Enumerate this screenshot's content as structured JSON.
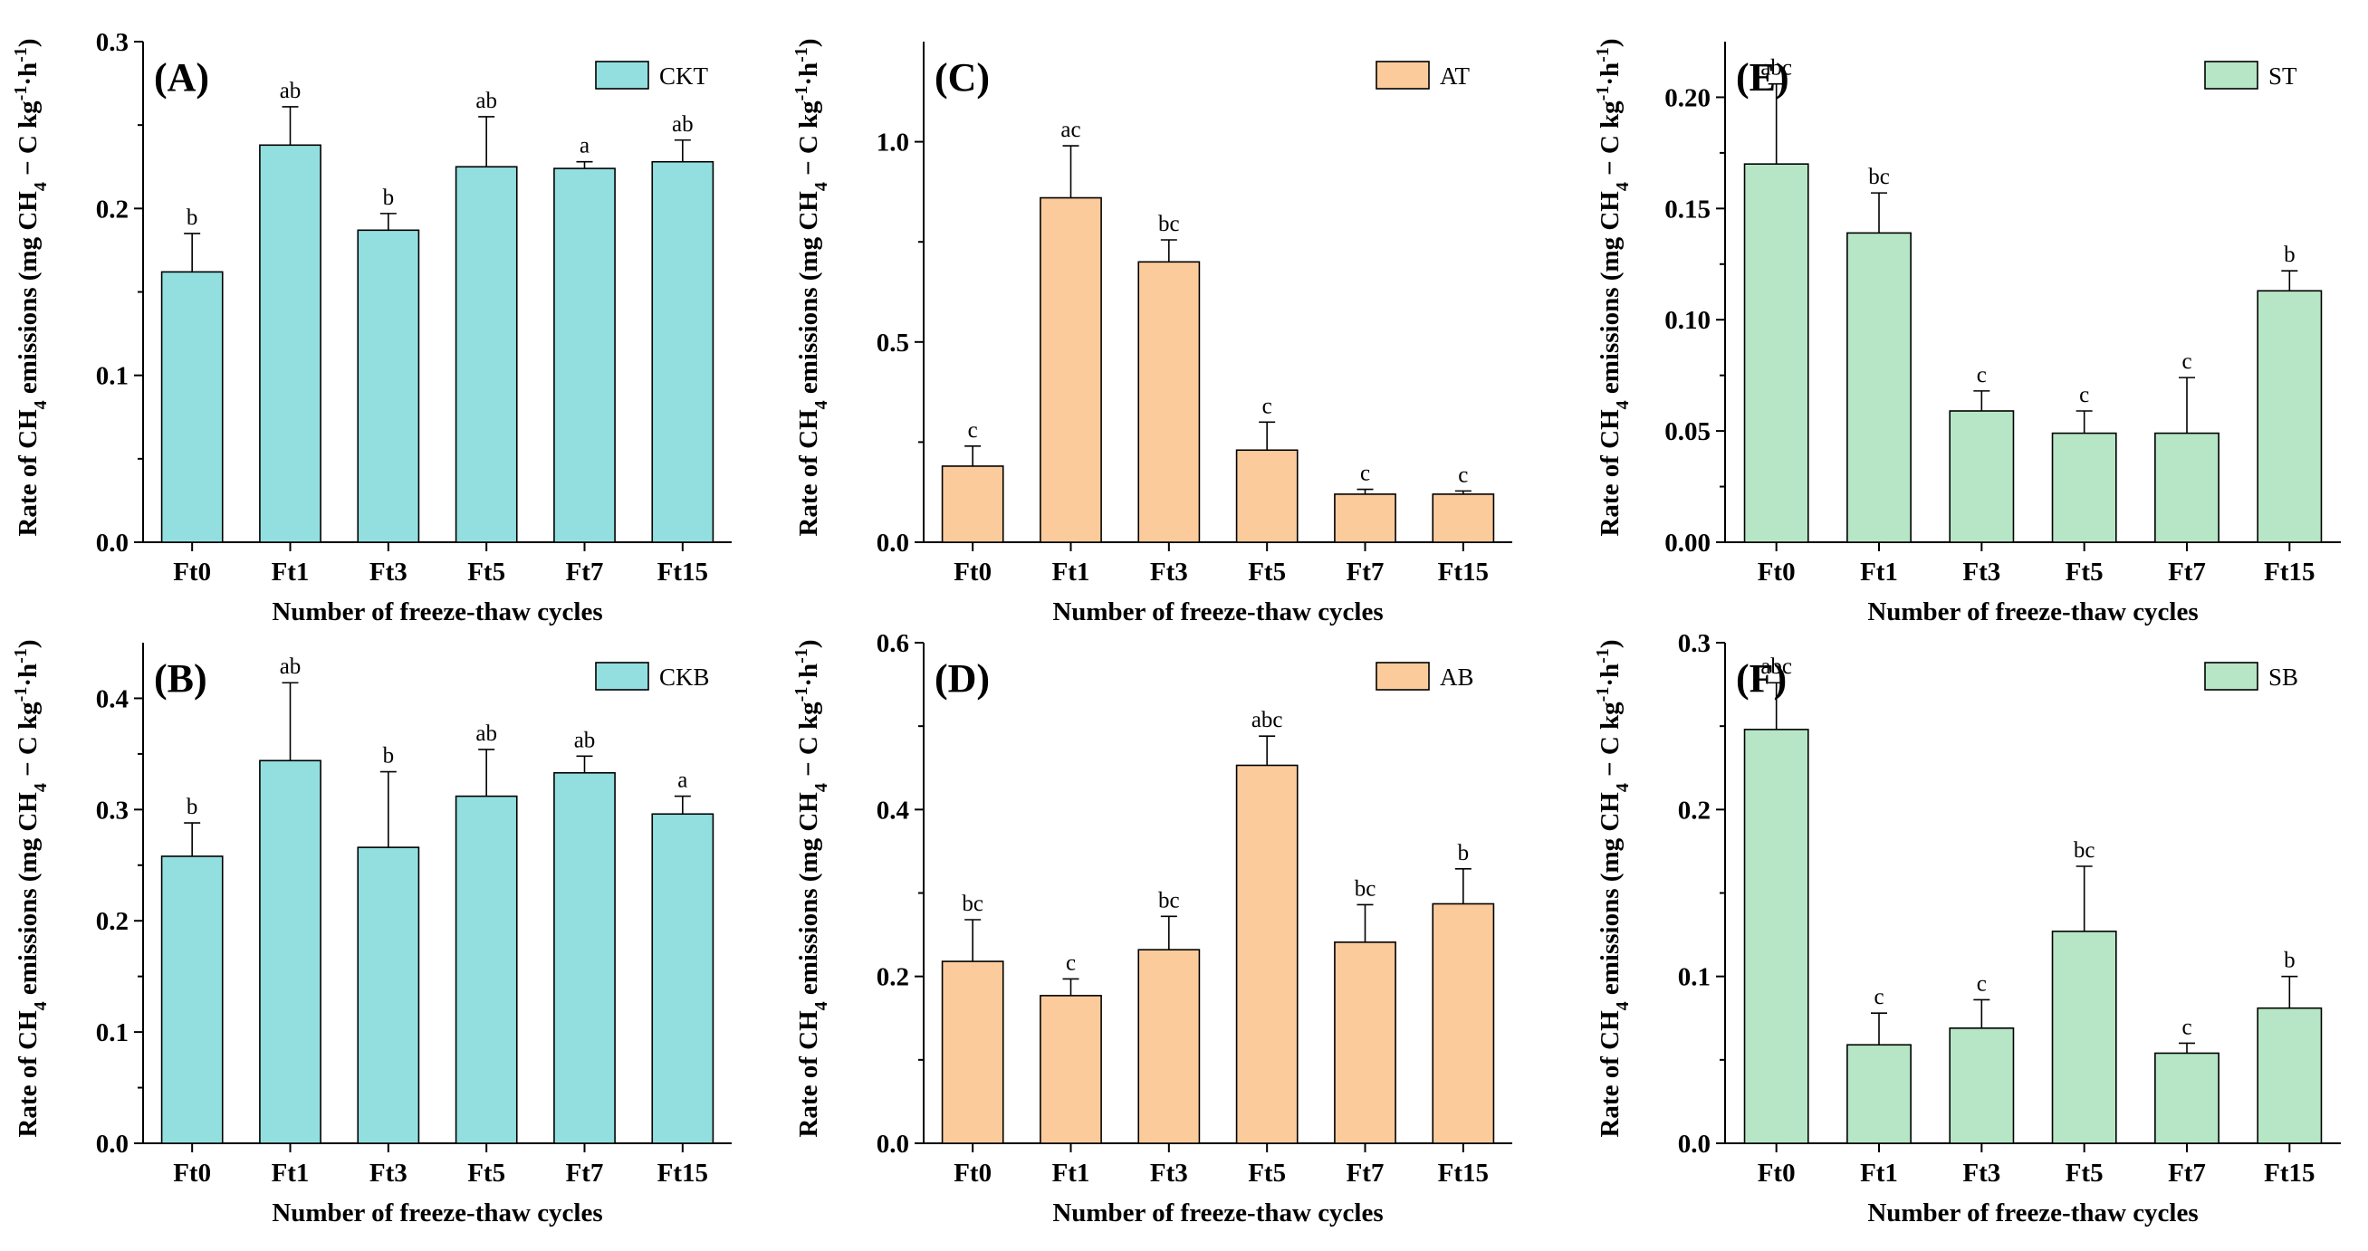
{
  "figure": {
    "panels": [
      {
        "label": "(A)",
        "legend": "CKT",
        "color": "#93dfe0"
      },
      {
        "label": "(B)",
        "legend": "CKB",
        "color": "#93dfe0"
      },
      {
        "label": "(C)",
        "legend": "AT",
        "color": "#fccb9c"
      },
      {
        "label": "(D)",
        "legend": "AB",
        "color": "#fccb9c"
      },
      {
        "label": "(E)",
        "legend": "ST",
        "color": "#b6e6c5"
      },
      {
        "label": "(F)",
        "legend": "SB",
        "color": "#b6e6c5"
      }
    ]
  },
  "chart_data": [
    {
      "type": "bar",
      "panel": "(A)",
      "legend": "CKT",
      "color": "#93dfe0",
      "categories": [
        "Ft0",
        "Ft1",
        "Ft3",
        "Ft5",
        "Ft7",
        "Ft15"
      ],
      "values": [
        0.162,
        0.238,
        0.187,
        0.225,
        0.224,
        0.228
      ],
      "errors": [
        0.023,
        0.023,
        0.01,
        0.03,
        0.004,
        0.013
      ],
      "significance": [
        "b",
        "ab",
        "b",
        "ab",
        "a",
        "ab"
      ],
      "ylim": [
        0,
        0.3
      ],
      "yticks": [
        0.0,
        0.1,
        0.2,
        0.3
      ],
      "ytick_labels": [
        "0.0",
        "0.1",
        "0.2",
        "0.3"
      ],
      "xlabel": "Number of freeze-thaw cycles",
      "ylabel": "Rate of CH4 emissions (mg CH4 − C kg-1·h-1)"
    },
    {
      "type": "bar",
      "panel": "(B)",
      "legend": "CKB",
      "color": "#93dfe0",
      "categories": [
        "Ft0",
        "Ft1",
        "Ft3",
        "Ft5",
        "Ft7",
        "Ft15"
      ],
      "values": [
        0.258,
        0.344,
        0.266,
        0.312,
        0.333,
        0.296
      ],
      "errors": [
        0.03,
        0.07,
        0.068,
        0.042,
        0.015,
        0.016
      ],
      "significance": [
        "b",
        "ab",
        "b",
        "ab",
        "ab",
        "a"
      ],
      "ylim": [
        0,
        0.45
      ],
      "yticks": [
        0.0,
        0.1,
        0.2,
        0.3,
        0.4
      ],
      "ytick_labels": [
        "0.0",
        "0.1",
        "0.2",
        "0.3",
        "0.4"
      ],
      "xlabel": "Number of freeze-thaw cycles",
      "ylabel": "Rate of CH4 emissions (mg CH4 − C kg-1·h-1)"
    },
    {
      "type": "bar",
      "panel": "(C)",
      "legend": "AT",
      "color": "#fccb9c",
      "categories": [
        "Ft0",
        "Ft1",
        "Ft3",
        "Ft5",
        "Ft7",
        "Ft15"
      ],
      "values": [
        0.19,
        0.86,
        0.7,
        0.23,
        0.12,
        0.12
      ],
      "errors": [
        0.05,
        0.13,
        0.055,
        0.07,
        0.012,
        0.008
      ],
      "significance": [
        "c",
        "ac",
        "bc",
        "c",
        "c",
        "c"
      ],
      "ylim": [
        0,
        1.25
      ],
      "yticks": [
        0.0,
        0.5,
        1.0
      ],
      "ytick_labels": [
        "0.0",
        "0.5",
        "1.0"
      ],
      "xlabel": "Number of freeze-thaw cycles",
      "ylabel": "Rate of CH4 emissions (mg CH4 − C kg-1·h-1)"
    },
    {
      "type": "bar",
      "panel": "(D)",
      "legend": "AB",
      "color": "#fccb9c",
      "categories": [
        "Ft0",
        "Ft1",
        "Ft3",
        "Ft5",
        "Ft7",
        "Ft15"
      ],
      "values": [
        0.218,
        0.177,
        0.232,
        0.453,
        0.241,
        0.287
      ],
      "errors": [
        0.05,
        0.02,
        0.04,
        0.035,
        0.045,
        0.042
      ],
      "significance": [
        "bc",
        "c",
        "bc",
        "abc",
        "bc",
        "b"
      ],
      "ylim": [
        0,
        0.6
      ],
      "yticks": [
        0.0,
        0.2,
        0.4,
        0.6
      ],
      "ytick_labels": [
        "0.0",
        "0.2",
        "0.4",
        "0.6"
      ],
      "xlabel": "Number of freeze-thaw cycles",
      "ylabel": "Rate of CH4 emissions (mg CH4 − C kg-1·h-1)"
    },
    {
      "type": "bar",
      "panel": "(E)",
      "legend": "ST",
      "color": "#b6e6c5",
      "categories": [
        "Ft0",
        "Ft1",
        "Ft3",
        "Ft5",
        "Ft7",
        "Ft15"
      ],
      "values": [
        0.17,
        0.139,
        0.059,
        0.049,
        0.049,
        0.113
      ],
      "errors": [
        0.036,
        0.018,
        0.009,
        0.01,
        0.025,
        0.009
      ],
      "significance": [
        "abc",
        "bc",
        "c",
        "c",
        "c",
        "b"
      ],
      "ylim": [
        0,
        0.225
      ],
      "yticks": [
        0.0,
        0.05,
        0.1,
        0.15,
        0.2
      ],
      "ytick_labels": [
        "0.00",
        "0.05",
        "0.10",
        "0.15",
        "0.20"
      ],
      "xlabel": "Number of freeze-thaw cycles",
      "ylabel": "Rate of CH4 emissions (mg CH4 − C kg-1·h-1)"
    },
    {
      "type": "bar",
      "panel": "(F)",
      "legend": "SB",
      "color": "#b6e6c5",
      "categories": [
        "Ft0",
        "Ft1",
        "Ft3",
        "Ft5",
        "Ft7",
        "Ft15"
      ],
      "values": [
        0.248,
        0.059,
        0.069,
        0.127,
        0.054,
        0.081
      ],
      "errors": [
        0.028,
        0.019,
        0.017,
        0.039,
        0.006,
        0.019
      ],
      "significance": [
        "abc",
        "c",
        "c",
        "bc",
        "c",
        "b"
      ],
      "ylim": [
        0,
        0.3
      ],
      "yticks": [
        0.0,
        0.1,
        0.2,
        0.3
      ],
      "ytick_labels": [
        "0.0",
        "0.1",
        "0.2",
        "0.3"
      ],
      "xlabel": "Number of freeze-thaw cycles",
      "ylabel": "Rate of CH4 emissions (mg CH4 − C kg-1·h-1)"
    }
  ]
}
